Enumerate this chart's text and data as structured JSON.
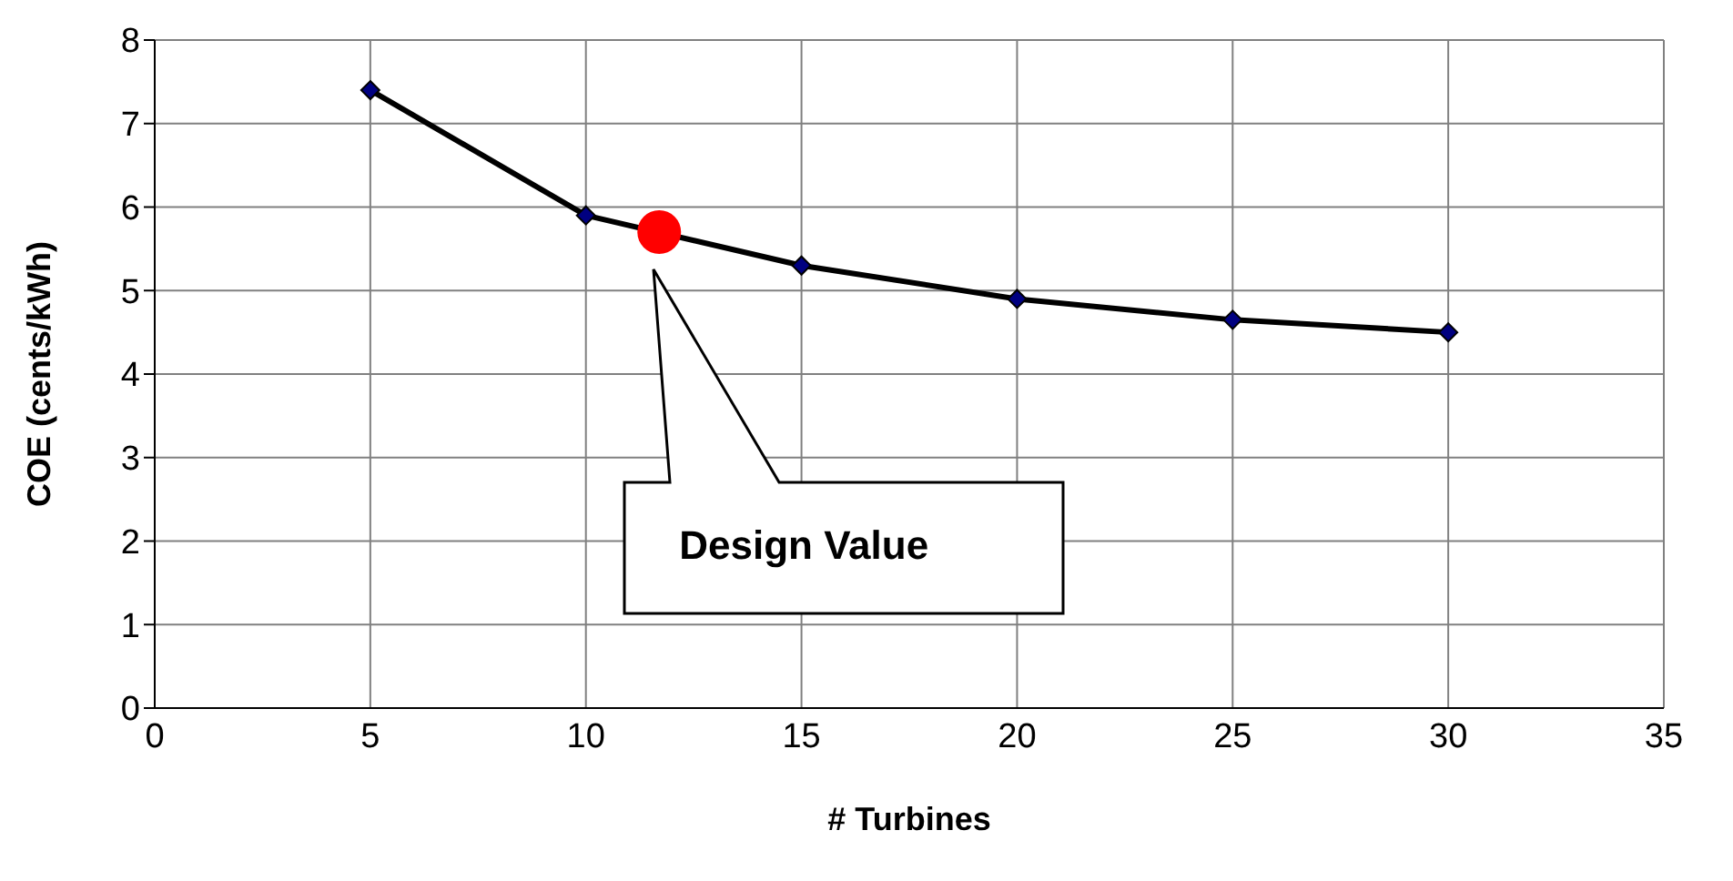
{
  "chart_data": {
    "type": "line",
    "xlabel": "# Turbines",
    "ylabel": "COE (cents/kWh)",
    "xlim": [
      0,
      35
    ],
    "xticks": [
      0,
      5,
      10,
      15,
      20,
      25,
      30,
      35
    ],
    "ylim": [
      0,
      8
    ],
    "yticks": [
      0,
      1,
      2,
      3,
      4,
      5,
      6,
      7,
      8
    ],
    "grid": true,
    "series": [
      {
        "color": "#000000",
        "colors": [
          "#000080",
          "#000080",
          "#000080",
          "#000080",
          "#000080",
          "#000080"
        ],
        "marker": "diamond",
        "line_style": "solid",
        "x": [
          5,
          10,
          15,
          20,
          25,
          30
        ],
        "values": [
          7.4,
          5.9,
          5.3,
          4.9,
          4.65,
          4.5
        ]
      },
      {
        "type": "scatter",
        "color": "#ff0000",
        "marker": "circle",
        "x": [
          11.7
        ],
        "values": [
          5.7
        ]
      }
    ],
    "annotations": [
      "Design Value"
    ]
  }
}
